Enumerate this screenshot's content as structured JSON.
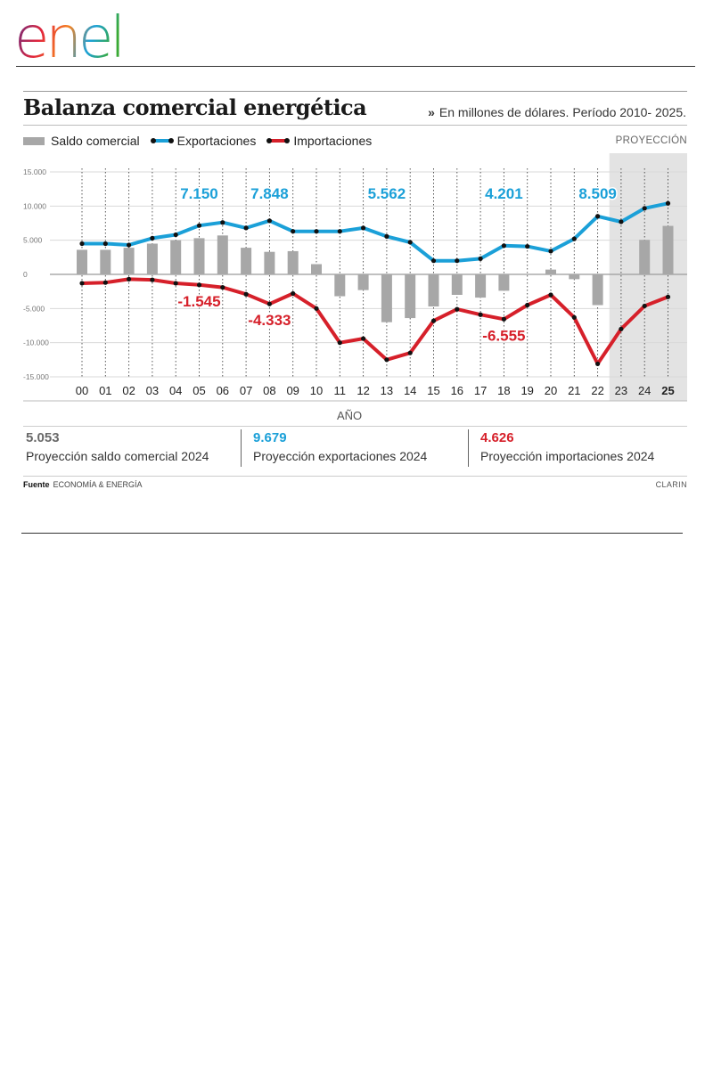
{
  "brand": {
    "logo_text": "enel",
    "colors": [
      "#4F2D8F",
      "#E3263B",
      "#F58220",
      "#1AA1DA",
      "#3AAA35"
    ]
  },
  "colors": {
    "bar": "#a7a7a7",
    "exports": "#1ba0d8",
    "imports": "#d6202a",
    "projection_bg": "#e3e3e3",
    "stat_saldo": "#6a6a6a",
    "stat_exports": "#1ba0d8",
    "stat_imports": "#d6202a"
  },
  "header": {
    "title": "Balanza comercial energética",
    "subtitle_arrows": "»",
    "subtitle": "En millones de dólares. Período 2010- 2025."
  },
  "legend": {
    "saldo": "Saldo comercial",
    "exports": "Exportaciones",
    "imports": "Importaciones",
    "projection": "PROYECCIÓN"
  },
  "chart_data": {
    "type": "bar+line",
    "title": "Balanza comercial energética",
    "subtitle": "En millones de dólares. Período 2010- 2025.",
    "xlabel": "AÑO",
    "ylabel": "",
    "ylim": [
      -15000,
      15000
    ],
    "yticks": [
      15000,
      10000,
      5000,
      0,
      -5000,
      -10000,
      -15000
    ],
    "ytick_labels": [
      "15.000",
      "10.000",
      "5.000",
      "0",
      "-5.000",
      "-10.000",
      "-15.000"
    ],
    "categories": [
      "00",
      "01",
      "02",
      "03",
      "04",
      "05",
      "06",
      "07",
      "08",
      "09",
      "10",
      "11",
      "12",
      "13",
      "14",
      "15",
      "16",
      "17",
      "18",
      "19",
      "20",
      "21",
      "22",
      "23",
      "24",
      "25"
    ],
    "projection_from": "23",
    "series": [
      {
        "name": "Saldo comercial",
        "type": "bar",
        "values": [
          3600,
          3600,
          3900,
          4500,
          5000,
          5300,
          5700,
          3900,
          3300,
          3400,
          1500,
          -3200,
          -2300,
          -7000,
          -6400,
          -4700,
          -3000,
          -3400,
          -2400,
          0,
          700,
          -700,
          -4500,
          0,
          5053,
          7100
        ]
      },
      {
        "name": "Exportaciones",
        "type": "line",
        "values": [
          4500,
          4500,
          4300,
          5300,
          5800,
          7150,
          7600,
          6800,
          7848,
          6300,
          6300,
          6300,
          6800,
          5562,
          4700,
          2000,
          2000,
          2300,
          4201,
          4100,
          3400,
          5200,
          8509,
          7700,
          9679,
          10400
        ]
      },
      {
        "name": "Importaciones",
        "type": "line",
        "values": [
          -1300,
          -1200,
          -700,
          -800,
          -1300,
          -1545,
          -1900,
          -2900,
          -4333,
          -2800,
          -5000,
          -10000,
          -9400,
          -12500,
          -11500,
          -6800,
          -5100,
          -5900,
          -6555,
          -4500,
          -3000,
          -6300,
          -13100,
          -8000,
          -4626,
          -3300
        ]
      }
    ],
    "annotations": [
      {
        "series": "Exportaciones",
        "category": "05",
        "text": "7.150"
      },
      {
        "series": "Exportaciones",
        "category": "08",
        "text": "7.848"
      },
      {
        "series": "Exportaciones",
        "category": "13",
        "text": "5.562"
      },
      {
        "series": "Exportaciones",
        "category": "18",
        "text": "4.201"
      },
      {
        "series": "Exportaciones",
        "category": "22",
        "text": "8.509"
      },
      {
        "series": "Importaciones",
        "category": "05",
        "text": "-1.545"
      },
      {
        "series": "Importaciones",
        "category": "08",
        "text": "-4.333"
      },
      {
        "series": "Importaciones",
        "category": "18",
        "text": "-6.555"
      }
    ]
  },
  "stats": [
    {
      "value": "5.053",
      "label": "Proyección saldo comercial 2024"
    },
    {
      "value": "9.679",
      "label": "Proyección exportaciones 2024"
    },
    {
      "value": "4.626",
      "label": "Proyección importaciones 2024"
    }
  ],
  "footer": {
    "source_label": "Fuente",
    "source": "ECONOMÍA & ENERGÍA",
    "credit": "CLARIN"
  }
}
